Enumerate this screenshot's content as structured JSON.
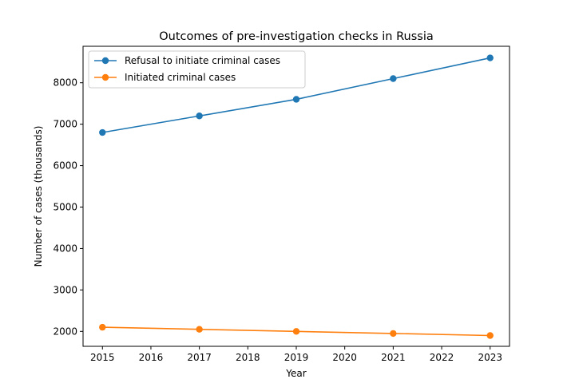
{
  "chart_data": {
    "type": "line",
    "title": "Outcomes of pre-investigation checks in Russia",
    "xlabel": "Year",
    "ylabel": "Number of cases (thousands)",
    "xlim": [
      2014.6,
      2023.4
    ],
    "ylim": [
      1640,
      8880
    ],
    "x_ticks": [
      2015,
      2016,
      2017,
      2018,
      2019,
      2020,
      2021,
      2022,
      2023
    ],
    "y_ticks": [
      2000,
      3000,
      4000,
      5000,
      6000,
      7000,
      8000
    ],
    "legend_position": "top-left",
    "series": [
      {
        "name": "Refusal to initiate criminal cases",
        "color": "#1f77b4",
        "x": [
          2015,
          2017,
          2019,
          2021,
          2023
        ],
        "values": [
          6800,
          7200,
          7600,
          8100,
          8600
        ]
      },
      {
        "name": "Initiated criminal cases",
        "color": "#ff7f0e",
        "x": [
          2015,
          2017,
          2019,
          2021,
          2023
        ],
        "values": [
          2100,
          2050,
          2000,
          1950,
          1900
        ]
      }
    ]
  }
}
